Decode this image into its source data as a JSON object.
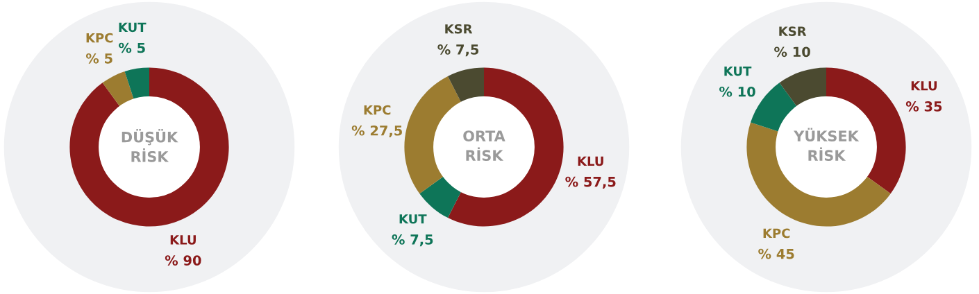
{
  "chart_data": [
    {
      "type": "donut",
      "title": "DÜŞÜK\nRİSK",
      "categories": [
        "KLU",
        "KPC",
        "KUT"
      ],
      "values": [
        90,
        5,
        5
      ],
      "colors": [
        "#8b1a1a",
        "#9c7c30",
        "#0e7558"
      ],
      "value_labels": [
        "% 90",
        "% 5",
        "% 5"
      ]
    },
    {
      "type": "donut",
      "title": "ORTA\nRİSK",
      "categories": [
        "KLU",
        "KUT",
        "KPC",
        "KSR"
      ],
      "values": [
        57.5,
        7.5,
        27.5,
        7.5
      ],
      "colors": [
        "#8b1a1a",
        "#0e7558",
        "#9c7c30",
        "#4b4a30"
      ],
      "value_labels": [
        "% 57,5",
        "% 7,5",
        "% 27,5",
        "% 7,5"
      ]
    },
    {
      "type": "donut",
      "title": "YÜKSEK\nRİSK",
      "categories": [
        "KLU",
        "KPC",
        "KUT",
        "KSR"
      ],
      "values": [
        35,
        45,
        10,
        10
      ],
      "colors": [
        "#8b1a1a",
        "#9c7c30",
        "#0e7558",
        "#4b4a30"
      ],
      "value_labels": [
        "% 35",
        "% 45",
        "% 10",
        "% 10"
      ]
    }
  ]
}
